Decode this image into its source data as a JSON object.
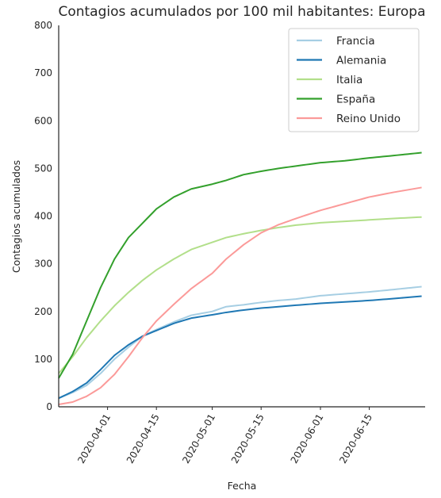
{
  "chart_data": {
    "type": "line",
    "title": "Contagios acumulados por 100 mil habitantes: Europa",
    "xlabel": "Fecha",
    "ylabel": "Contagios acumulados",
    "xlim": [
      "2020-03-18",
      "2020-07-01"
    ],
    "ylim": [
      0,
      800
    ],
    "yticks": [
      0,
      100,
      200,
      300,
      400,
      500,
      600,
      700,
      800
    ],
    "xticks": [
      "2020-04-01",
      "2020-04-15",
      "2020-05-01",
      "2020-05-15",
      "2020-06-01",
      "2020-06-15"
    ],
    "grid": false,
    "legend_position": "top-right",
    "series": [
      {
        "name": "Francia",
        "color": "#a6cee3",
        "x": [
          "2020-03-18",
          "2020-03-22",
          "2020-03-26",
          "2020-03-30",
          "2020-04-03",
          "2020-04-07",
          "2020-04-11",
          "2020-04-15",
          "2020-04-20",
          "2020-04-25",
          "2020-05-01",
          "2020-05-05",
          "2020-05-10",
          "2020-05-15",
          "2020-05-20",
          "2020-05-25",
          "2020-06-01",
          "2020-06-08",
          "2020-06-15",
          "2020-06-22",
          "2020-06-30"
        ],
        "y": [
          18,
          30,
          45,
          70,
          100,
          125,
          148,
          162,
          178,
          192,
          200,
          210,
          214,
          219,
          223,
          226,
          233,
          237,
          241,
          246,
          252
        ]
      },
      {
        "name": "Alemania",
        "color": "#1f78b4",
        "x": [
          "2020-03-18",
          "2020-03-22",
          "2020-03-26",
          "2020-03-30",
          "2020-04-03",
          "2020-04-07",
          "2020-04-11",
          "2020-04-15",
          "2020-04-20",
          "2020-04-25",
          "2020-05-01",
          "2020-05-05",
          "2020-05-10",
          "2020-05-15",
          "2020-05-20",
          "2020-05-25",
          "2020-06-01",
          "2020-06-08",
          "2020-06-15",
          "2020-06-22",
          "2020-06-30"
        ],
        "y": [
          18,
          32,
          50,
          78,
          108,
          130,
          148,
          160,
          175,
          186,
          193,
          198,
          203,
          207,
          210,
          213,
          217,
          220,
          223,
          227,
          232
        ]
      },
      {
        "name": "Italia",
        "color": "#b2df8a",
        "x": [
          "2020-03-18",
          "2020-03-22",
          "2020-03-26",
          "2020-03-30",
          "2020-04-03",
          "2020-04-07",
          "2020-04-11",
          "2020-04-15",
          "2020-04-20",
          "2020-04-25",
          "2020-05-01",
          "2020-05-05",
          "2020-05-10",
          "2020-05-15",
          "2020-05-20",
          "2020-05-25",
          "2020-06-01",
          "2020-06-08",
          "2020-06-15",
          "2020-06-22",
          "2020-06-30"
        ],
        "y": [
          70,
          105,
          145,
          180,
          212,
          240,
          265,
          287,
          310,
          330,
          345,
          355,
          363,
          370,
          376,
          381,
          386,
          389,
          392,
          395,
          398
        ]
      },
      {
        "name": "España",
        "color": "#33a02c",
        "x": [
          "2020-03-18",
          "2020-03-22",
          "2020-03-26",
          "2020-03-30",
          "2020-04-03",
          "2020-04-07",
          "2020-04-11",
          "2020-04-15",
          "2020-04-20",
          "2020-04-25",
          "2020-05-01",
          "2020-05-05",
          "2020-05-10",
          "2020-05-15",
          "2020-05-20",
          "2020-05-25",
          "2020-06-01",
          "2020-06-08",
          "2020-06-15",
          "2020-06-22",
          "2020-06-30"
        ],
        "y": [
          60,
          110,
          180,
          250,
          310,
          355,
          385,
          415,
          440,
          457,
          467,
          475,
          487,
          494,
          500,
          505,
          512,
          516,
          522,
          527,
          533
        ]
      },
      {
        "name": "Reino Unido",
        "color": "#fb9a99",
        "x": [
          "2020-03-18",
          "2020-03-22",
          "2020-03-26",
          "2020-03-30",
          "2020-04-03",
          "2020-04-07",
          "2020-04-11",
          "2020-04-15",
          "2020-04-20",
          "2020-04-25",
          "2020-05-01",
          "2020-05-05",
          "2020-05-10",
          "2020-05-15",
          "2020-05-20",
          "2020-05-25",
          "2020-06-01",
          "2020-06-08",
          "2020-06-15",
          "2020-06-22",
          "2020-06-30"
        ],
        "y": [
          5,
          10,
          22,
          40,
          68,
          105,
          145,
          180,
          215,
          248,
          280,
          310,
          340,
          365,
          382,
          395,
          412,
          426,
          440,
          450,
          460
        ]
      }
    ]
  }
}
